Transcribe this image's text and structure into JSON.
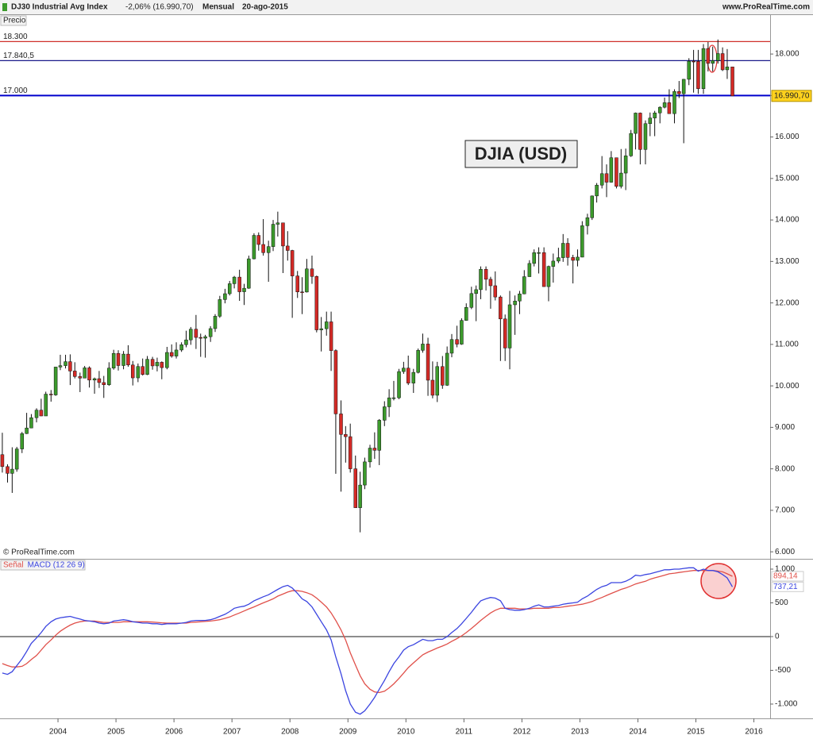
{
  "chart_data": [
    {
      "type": "candlestick",
      "title": "DJ30 Industrial Avg Index",
      "change": "-2,06% (16.990,70)",
      "period": "Mensual",
      "date": "20-ago-2015",
      "source": "www.ProRealTime.com",
      "pane_label": "Precio",
      "copyright": "© ProRealTime.com",
      "annotation": "DJIA (USD)",
      "up_color": "#3c9a2c",
      "down_color": "#d42a26",
      "xlim": [
        2003.0,
        2016.28
      ],
      "ylim": [
        5850,
        18920
      ],
      "yticks": [
        {
          "value": 6000,
          "label": "6.000"
        },
        {
          "value": 7000,
          "label": "7.000"
        },
        {
          "value": 8000,
          "label": "8.000"
        },
        {
          "value": 9000,
          "label": "9.000"
        },
        {
          "value": 10000,
          "label": "10.000"
        },
        {
          "value": 11000,
          "label": "11.000"
        },
        {
          "value": 12000,
          "label": "12.000"
        },
        {
          "value": 13000,
          "label": "13.000"
        },
        {
          "value": 14000,
          "label": "14.000"
        },
        {
          "value": 15000,
          "label": "15.000"
        },
        {
          "value": 16000,
          "label": "16.000"
        },
        {
          "value": 17000,
          "label": "17.000"
        },
        {
          "value": 18000,
          "label": "18.000"
        }
      ],
      "levels": [
        {
          "value": 18300,
          "label": "18.300",
          "color": "#d0302a"
        },
        {
          "value": 17840.5,
          "label": "17.840,5",
          "color": "#1a1a8a"
        },
        {
          "value": 17000,
          "label": "17.000",
          "color": "#0000cc"
        }
      ],
      "last": {
        "value": 16990.7,
        "label": "16.990,70"
      },
      "x": [
        2003.04,
        2003.13,
        2003.21,
        2003.29,
        2003.38,
        2003.46,
        2003.54,
        2003.63,
        2003.71,
        2003.79,
        2003.88,
        2003.96,
        2004.04,
        2004.13,
        2004.21,
        2004.29,
        2004.38,
        2004.46,
        2004.54,
        2004.63,
        2004.71,
        2004.79,
        2004.88,
        2004.96,
        2005.04,
        2005.13,
        2005.21,
        2005.29,
        2005.38,
        2005.46,
        2005.54,
        2005.63,
        2005.71,
        2005.79,
        2005.88,
        2005.96,
        2006.04,
        2006.13,
        2006.21,
        2006.29,
        2006.38,
        2006.46,
        2006.54,
        2006.63,
        2006.71,
        2006.79,
        2006.88,
        2006.96,
        2007.04,
        2007.13,
        2007.21,
        2007.29,
        2007.38,
        2007.46,
        2007.54,
        2007.63,
        2007.71,
        2007.79,
        2007.88,
        2007.96,
        2008.04,
        2008.13,
        2008.21,
        2008.29,
        2008.38,
        2008.46,
        2008.54,
        2008.63,
        2008.71,
        2008.79,
        2008.88,
        2008.96,
        2009.04,
        2009.13,
        2009.21,
        2009.29,
        2009.38,
        2009.46,
        2009.54,
        2009.63,
        2009.71,
        2009.79,
        2009.88,
        2009.96,
        2010.04,
        2010.13,
        2010.21,
        2010.29,
        2010.38,
        2010.46,
        2010.54,
        2010.63,
        2010.71,
        2010.79,
        2010.88,
        2010.96,
        2011.04,
        2011.13,
        2011.21,
        2011.29,
        2011.38,
        2011.46,
        2011.54,
        2011.63,
        2011.71,
        2011.79,
        2011.88,
        2011.96,
        2012.04,
        2012.13,
        2012.21,
        2012.29,
        2012.38,
        2012.46,
        2012.54,
        2012.63,
        2012.71,
        2012.79,
        2012.88,
        2012.96,
        2013.04,
        2013.13,
        2013.21,
        2013.29,
        2013.38,
        2013.46,
        2013.54,
        2013.63,
        2013.71,
        2013.79,
        2013.88,
        2013.96,
        2014.04,
        2014.13,
        2014.21,
        2014.29,
        2014.38,
        2014.46,
        2014.54,
        2014.63,
        2014.71,
        2014.79,
        2014.88,
        2014.96,
        2015.04,
        2015.13,
        2015.21,
        2015.29,
        2015.38,
        2015.46,
        2015.54,
        2015.63
      ],
      "open": [
        8342,
        8054,
        7891,
        7992,
        8480,
        8850,
        8985,
        9233,
        9415,
        9275,
        9801,
        9782,
        10454,
        10488,
        10584,
        10358,
        10226,
        10188,
        10435,
        10140,
        10174,
        10080,
        10027,
        10428,
        10783,
        10490,
        10766,
        10504,
        10193,
        10467,
        10275,
        10641,
        10482,
        10569,
        10440,
        10806,
        10718,
        10865,
        10993,
        11109,
        11367,
        11168,
        11150,
        11186,
        11381,
        11679,
        12081,
        12222,
        12463,
        12622,
        12269,
        12354,
        13063,
        13628,
        13409,
        13212,
        13358,
        13896,
        13930,
        13372,
        13265,
        12650,
        12266,
        12263,
        12820,
        12638,
        11350,
        11378,
        11544,
        10851,
        9325,
        8829,
        8776,
        8001,
        7063,
        7609,
        8168,
        8500,
        8447,
        9172,
        9496,
        9712,
        9713,
        10345,
        10428,
        10067,
        10325,
        10857,
        11009,
        10137,
        9774,
        10466,
        10015,
        10788,
        11118,
        11006,
        11578,
        11892,
        12226,
        12320,
        12811,
        12570,
        12414,
        12143,
        11614,
        10913,
        11955,
        12046,
        12218,
        12633,
        12952,
        13212,
        13214,
        12393,
        12880,
        13009,
        13091,
        13437,
        13096,
        13026,
        13104,
        13861,
        14054,
        14579,
        14840,
        15116,
        14910,
        15500,
        14810,
        15130,
        15546,
        16086,
        16577,
        15699,
        16322,
        16458,
        16581,
        16717,
        16827,
        16563,
        17098,
        17043,
        17391,
        17828,
        17823,
        17165,
        18133,
        17776,
        17841,
        18011,
        17620,
        17690
      ],
      "high": [
        8870,
        8110,
        8520,
        8530,
        8890,
        9350,
        9320,
        9460,
        9690,
        9860,
        9900,
        10460,
        10750,
        10750,
        10760,
        10570,
        10320,
        10480,
        10470,
        10200,
        10360,
        10240,
        10570,
        10870,
        10860,
        10840,
        10980,
        10600,
        10540,
        10660,
        10720,
        10700,
        10680,
        10590,
        10940,
        11000,
        11050,
        11050,
        11330,
        11420,
        11710,
        11260,
        11230,
        11440,
        11730,
        12170,
        12340,
        12530,
        12650,
        12800,
        12460,
        13140,
        13680,
        13700,
        14020,
        13500,
        14000,
        14200,
        13920,
        13730,
        13280,
        12770,
        12620,
        13060,
        13140,
        12660,
        11660,
        11790,
        11790,
        10880,
        9650,
        9030,
        9090,
        8320,
        7930,
        8270,
        8580,
        8880,
        9200,
        9630,
        9920,
        10120,
        10410,
        10580,
        10730,
        10410,
        10900,
        11260,
        11160,
        10590,
        10580,
        10720,
        10950,
        11250,
        11450,
        11630,
        11990,
        12390,
        12420,
        12880,
        12880,
        12630,
        12760,
        12180,
        11720,
        12290,
        12180,
        12290,
        12790,
        13030,
        13290,
        13340,
        13340,
        12900,
        13190,
        13330,
        13660,
        13560,
        13160,
        13290,
        13970,
        14150,
        14590,
        14890,
        15540,
        15340,
        15660,
        15500,
        15710,
        15720,
        16170,
        16590,
        16590,
        16400,
        16590,
        16630,
        16740,
        16950,
        17150,
        17150,
        17350,
        17400,
        17900,
        18100,
        18100,
        18240,
        18290,
        18180,
        18350,
        18160,
        18120,
        17690
      ],
      "low": [
        7910,
        7670,
        7420,
        7930,
        8380,
        8840,
        8980,
        9120,
        9270,
        9280,
        9620,
        9760,
        10380,
        10420,
        10020,
        10180,
        9850,
        10200,
        9960,
        9810,
        9950,
        9710,
        10000,
        10390,
        10370,
        10400,
        10460,
        10010,
        10090,
        10250,
        10260,
        10390,
        10350,
        10160,
        10400,
        10680,
        10660,
        10820,
        10930,
        10990,
        10890,
        10700,
        10680,
        11060,
        11300,
        11640,
        11990,
        12180,
        12350,
        12050,
        11950,
        12340,
        13050,
        13260,
        13140,
        12510,
        13250,
        13600,
        12720,
        13020,
        11640,
        12120,
        11730,
        12250,
        12460,
        11290,
        10830,
        11210,
        10360,
        7880,
        7450,
        8150,
        7910,
        7060,
        6470,
        7510,
        8030,
        8240,
        8090,
        9030,
        9250,
        9650,
        9680,
        10290,
        10020,
        9830,
        10300,
        10800,
        9760,
        9700,
        9610,
        9930,
        10000,
        10690,
        10930,
        10990,
        11570,
        11850,
        11560,
        12090,
        12300,
        11860,
        12060,
        10600,
        10600,
        10400,
        11230,
        11730,
        12210,
        12630,
        12880,
        12710,
        12390,
        12040,
        12490,
        12960,
        12990,
        12900,
        12470,
        12880,
        13100,
        13650,
        14000,
        14420,
        14760,
        14550,
        14900,
        14760,
        14760,
        14720,
        15520,
        15700,
        15340,
        15340,
        16020,
        16020,
        16330,
        16690,
        16560,
        16330,
        16940,
        15850,
        17250,
        17070,
        17040,
        17040,
        17580,
        17580,
        17770,
        17590,
        17400,
        16990
      ],
      "close": [
        8054,
        7891,
        7992,
        8480,
        8850,
        8985,
        9233,
        9415,
        9275,
        9801,
        9782,
        10454,
        10488,
        10584,
        10358,
        10226,
        10188,
        10435,
        10140,
        10174,
        10080,
        10027,
        10428,
        10783,
        10490,
        10766,
        10504,
        10193,
        10467,
        10275,
        10641,
        10482,
        10569,
        10440,
        10806,
        10718,
        10865,
        10993,
        11109,
        11367,
        11168,
        11150,
        11186,
        11381,
        11679,
        12081,
        12222,
        12463,
        12622,
        12269,
        12354,
        13063,
        13628,
        13409,
        13212,
        13358,
        13896,
        13930,
        13372,
        13265,
        12650,
        12266,
        12263,
        12820,
        12638,
        11350,
        11378,
        11544,
        10851,
        9325,
        8829,
        8776,
        8001,
        7063,
        7609,
        8168,
        8500,
        8447,
        9172,
        9496,
        9712,
        9713,
        10345,
        10428,
        10067,
        10325,
        10857,
        11009,
        10137,
        9774,
        10466,
        10015,
        10788,
        11118,
        11006,
        11578,
        11892,
        12226,
        12320,
        12811,
        12570,
        12414,
        12143,
        11614,
        10913,
        11955,
        12046,
        12218,
        12633,
        12952,
        13212,
        13214,
        12393,
        12880,
        13009,
        13091,
        13437,
        13096,
        13026,
        13104,
        13861,
        14054,
        14579,
        14840,
        15116,
        14910,
        15500,
        14810,
        15130,
        15546,
        16086,
        16577,
        15699,
        16322,
        16458,
        16581,
        16717,
        16827,
        16563,
        17098,
        17043,
        17391,
        17828,
        17823,
        17165,
        18133,
        17776,
        17841,
        18011,
        17620,
        17690,
        16990.7
      ]
    },
    {
      "type": "line",
      "xlim": [
        2003.0,
        2016.28
      ],
      "ylim": [
        -1212,
        1141
      ],
      "yticks": [
        {
          "value": -1000,
          "label": "-1.000"
        },
        -500,
        0,
        500,
        {
          "value": 1000,
          "label": "1.000"
        }
      ],
      "xticks": [
        2004,
        2005,
        2006,
        2007,
        2008,
        2009,
        2010,
        2011,
        2012,
        2013,
        2014,
        2015,
        2016
      ],
      "series": [
        {
          "name": "Señal",
          "color": "#e0504a",
          "end_label": "894,14",
          "values": [
            -400,
            -430,
            -450,
            -450,
            -440,
            -400,
            -340,
            -280,
            -200,
            -120,
            -50,
            20,
            80,
            130,
            170,
            200,
            220,
            230,
            230,
            230,
            220,
            210,
            210,
            210,
            210,
            220,
            220,
            220,
            220,
            220,
            220,
            215,
            210,
            205,
            200,
            200,
            200,
            200,
            200,
            210,
            215,
            220,
            225,
            230,
            240,
            250,
            270,
            290,
            320,
            350,
            380,
            410,
            440,
            470,
            500,
            530,
            560,
            600,
            630,
            660,
            680,
            680,
            670,
            650,
            620,
            570,
            510,
            440,
            350,
            240,
            100,
            -50,
            -240,
            -420,
            -580,
            -700,
            -780,
            -820,
            -830,
            -810,
            -760,
            -700,
            -620,
            -540,
            -460,
            -390,
            -330,
            -270,
            -230,
            -200,
            -170,
            -140,
            -110,
            -70,
            -30,
            10,
            60,
            120,
            180,
            240,
            300,
            350,
            390,
            420,
            420,
            420,
            420,
            410,
            410,
            410,
            420,
            420,
            420,
            420,
            430,
            430,
            440,
            450,
            460,
            470,
            480,
            500,
            520,
            550,
            580,
            610,
            640,
            670,
            700,
            720,
            750,
            780,
            800,
            820,
            850,
            870,
            890,
            910,
            930,
            940,
            950,
            960,
            970,
            980,
            980,
            980,
            980,
            980,
            970,
            960,
            930,
            894.14
          ]
        },
        {
          "name": "MACD (12 26 9)",
          "color": "#3b45e0",
          "end_label": "737,21",
          "values": [
            -540,
            -560,
            -520,
            -430,
            -330,
            -220,
            -100,
            -20,
            60,
            150,
            220,
            260,
            280,
            290,
            300,
            280,
            260,
            240,
            230,
            220,
            200,
            190,
            200,
            230,
            240,
            250,
            240,
            220,
            210,
            200,
            200,
            190,
            190,
            180,
            190,
            190,
            190,
            200,
            210,
            230,
            240,
            240,
            240,
            250,
            270,
            300,
            330,
            370,
            420,
            440,
            450,
            480,
            530,
            560,
            590,
            620,
            660,
            700,
            740,
            760,
            720,
            640,
            560,
            520,
            440,
            330,
            220,
            100,
            -50,
            -300,
            -550,
            -800,
            -1000,
            -1120,
            -1150,
            -1100,
            -1000,
            -900,
            -780,
            -650,
            -520,
            -400,
            -300,
            -200,
            -150,
            -120,
            -80,
            -40,
            -60,
            -60,
            -40,
            -40,
            0,
            60,
            120,
            190,
            270,
            360,
            450,
            530,
            560,
            580,
            570,
            530,
            420,
            400,
            390,
            390,
            400,
            420,
            450,
            470,
            440,
            440,
            450,
            460,
            480,
            490,
            500,
            510,
            560,
            600,
            650,
            700,
            740,
            760,
            800,
            800,
            800,
            820,
            860,
            910,
            900,
            920,
            930,
            950,
            970,
            990,
            990,
            1000,
            1000,
            1010,
            1020,
            1020,
            970,
            1000,
            980,
            980,
            960,
            920,
            870,
            737.21
          ]
        }
      ]
    }
  ]
}
